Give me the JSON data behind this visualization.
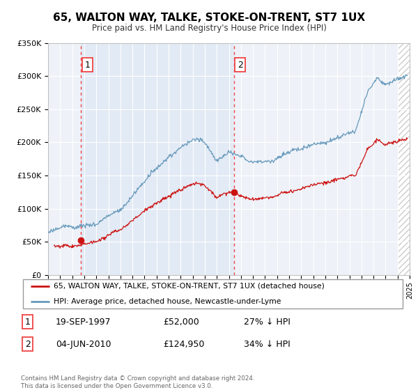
{
  "title": "65, WALTON WAY, TALKE, STOKE-ON-TRENT, ST7 1UX",
  "subtitle": "Price paid vs. HM Land Registry's House Price Index (HPI)",
  "legend_line1": "65, WALTON WAY, TALKE, STOKE-ON-TRENT, ST7 1UX (detached house)",
  "legend_line2": "HPI: Average price, detached house, Newcastle-under-Lyme",
  "sale1_label": "1",
  "sale1_date": "19-SEP-1997",
  "sale1_price": "£52,000",
  "sale1_hpi": "27% ↓ HPI",
  "sale2_label": "2",
  "sale2_date": "04-JUN-2010",
  "sale2_price": "£124,950",
  "sale2_hpi": "34% ↓ HPI",
  "footnote": "Contains HM Land Registry data © Crown copyright and database right 2024.\nThis data is licensed under the Open Government Licence v3.0.",
  "sale1_year": 1997.72,
  "sale1_value": 52000,
  "sale2_year": 2010.42,
  "sale2_value": 124950,
  "red_color": "#cc1111",
  "blue_color": "#6699bb",
  "vline_color": "#ee4444",
  "shade_color": "#dde8f5",
  "bg_color": "#eef2f8",
  "plot_bg": "#ffffff",
  "hatch_color": "#cccccc",
  "xmin": 1995,
  "xmax": 2025,
  "ymin": 0,
  "ymax": 350000,
  "yticks": [
    0,
    50000,
    100000,
    150000,
    200000,
    250000,
    300000,
    350000
  ],
  "ylabels": [
    "£0",
    "£50K",
    "£100K",
    "£150K",
    "£200K",
    "£250K",
    "£300K",
    "£350K"
  ]
}
